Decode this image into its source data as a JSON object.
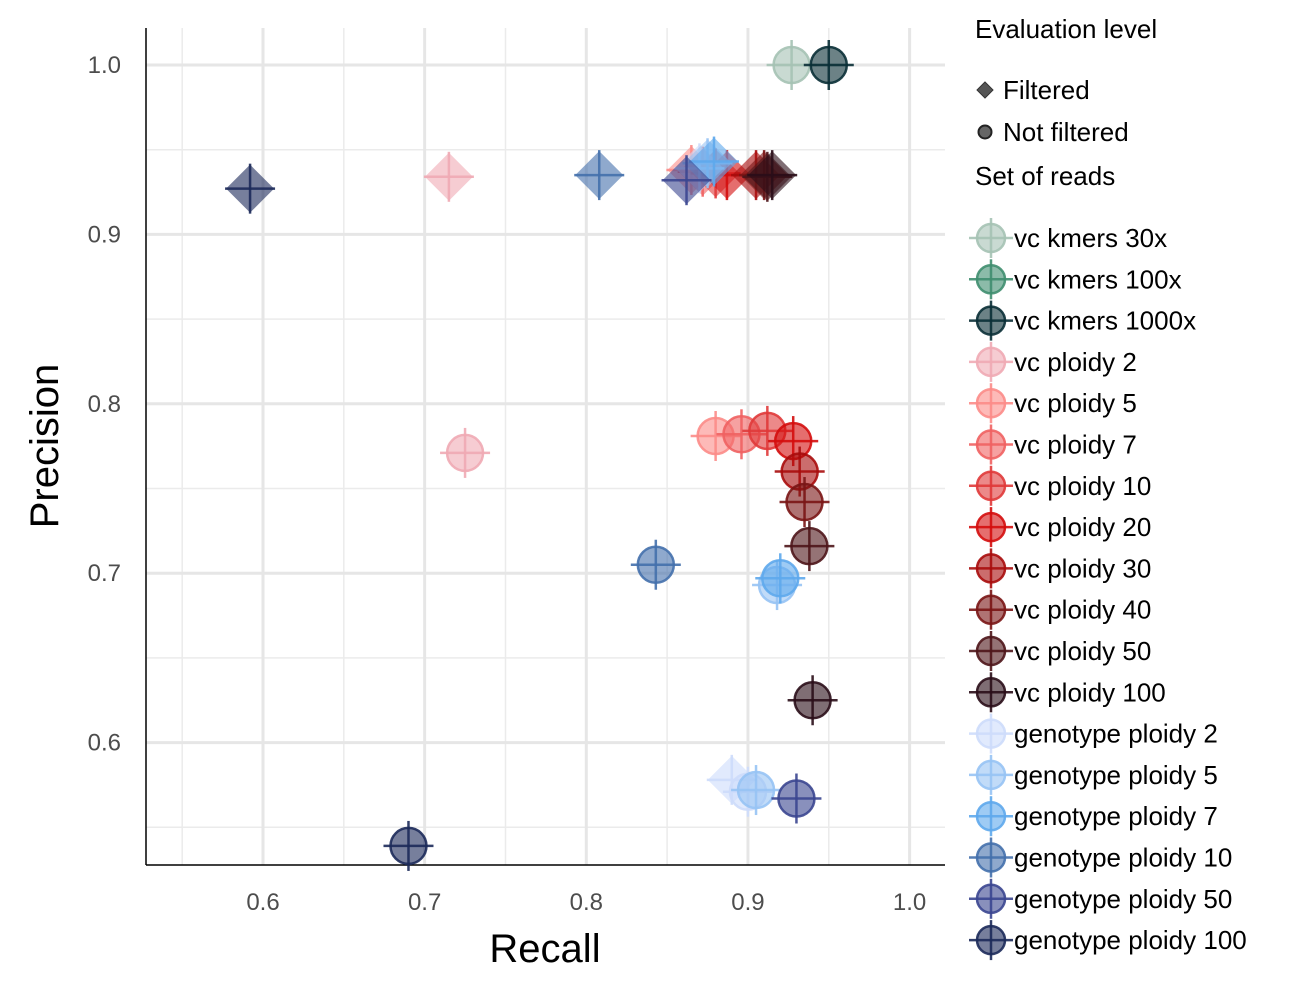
{
  "chart_data": {
    "type": "scatter",
    "xlabel": "Recall",
    "ylabel": "Precision",
    "xlim": [
      0.53,
      1.03
    ],
    "ylim": [
      0.53,
      1.022
    ],
    "x_ticks": [
      "0.6",
      "0.7",
      "0.8",
      "0.9",
      "1.0"
    ],
    "y_ticks": [
      "0.6",
      "0.7",
      "0.8",
      "0.9",
      "1.0"
    ],
    "grid": true,
    "legend_placement": "right",
    "shape_legend": {
      "title": "Evaluation level",
      "entries": [
        {
          "label": "Filtered",
          "shape": "diamond"
        },
        {
          "label": "Not filtered",
          "shape": "circle"
        }
      ]
    },
    "color_legend_title": "Set of reads",
    "series": [
      {
        "name": "vc kmers 30x",
        "color": "#a5c2b4",
        "points": [
          {
            "x": 0.927,
            "y": 1.0,
            "shape": "circle"
          }
        ]
      },
      {
        "name": "vc kmers 100x",
        "color": "#3f8e6f",
        "points": []
      },
      {
        "name": "vc kmers 1000x",
        "color": "#0a2f36",
        "points": [
          {
            "x": 0.95,
            "y": 1.0,
            "shape": "circle"
          }
        ]
      },
      {
        "name": "vc ploidy 2",
        "color": "#f0aab4",
        "points": [
          {
            "x": 0.715,
            "y": 0.934,
            "shape": "diamond"
          },
          {
            "x": 0.725,
            "y": 0.771,
            "shape": "circle"
          }
        ]
      },
      {
        "name": "vc ploidy 5",
        "color": "#fc8c88",
        "points": [
          {
            "x": 0.865,
            "y": 0.938,
            "shape": "diamond"
          },
          {
            "x": 0.88,
            "y": 0.781,
            "shape": "circle"
          }
        ]
      },
      {
        "name": "vc ploidy 7",
        "color": "#f06262",
        "points": [
          {
            "x": 0.872,
            "y": 0.937,
            "shape": "diamond"
          },
          {
            "x": 0.896,
            "y": 0.782,
            "shape": "circle"
          }
        ]
      },
      {
        "name": "vc ploidy 10",
        "color": "#e03a3a",
        "points": [
          {
            "x": 0.88,
            "y": 0.936,
            "shape": "diamond"
          },
          {
            "x": 0.912,
            "y": 0.784,
            "shape": "circle"
          }
        ]
      },
      {
        "name": "vc ploidy 20",
        "color": "#d40d0d",
        "points": [
          {
            "x": 0.887,
            "y": 0.935,
            "shape": "diamond"
          },
          {
            "x": 0.928,
            "y": 0.778,
            "shape": "circle"
          }
        ]
      },
      {
        "name": "vc ploidy 30",
        "color": "#a80c0c",
        "points": [
          {
            "x": 0.905,
            "y": 0.935,
            "shape": "diamond"
          },
          {
            "x": 0.932,
            "y": 0.76,
            "shape": "circle"
          }
        ]
      },
      {
        "name": "vc ploidy 40",
        "color": "#7a1515",
        "points": [
          {
            "x": 0.91,
            "y": 0.935,
            "shape": "diamond"
          },
          {
            "x": 0.935,
            "y": 0.742,
            "shape": "circle"
          }
        ]
      },
      {
        "name": "vc ploidy 50",
        "color": "#4e1519",
        "points": [
          {
            "x": 0.912,
            "y": 0.934,
            "shape": "diamond"
          },
          {
            "x": 0.938,
            "y": 0.716,
            "shape": "circle"
          }
        ]
      },
      {
        "name": "vc ploidy 100",
        "color": "#2a0d18",
        "points": [
          {
            "x": 0.915,
            "y": 0.935,
            "shape": "diamond"
          },
          {
            "x": 0.94,
            "y": 0.625,
            "shape": "circle"
          }
        ]
      },
      {
        "name": "genotype ploidy 2",
        "color": "#cddcfb",
        "points": [
          {
            "x": 0.87,
            "y": 0.939,
            "shape": "diamond"
          },
          {
            "x": 0.89,
            "y": 0.578,
            "shape": "diamond"
          },
          {
            "x": 0.9,
            "y": 0.571,
            "shape": "circle"
          }
        ]
      },
      {
        "name": "genotype ploidy 5",
        "color": "#97c3f4",
        "points": [
          {
            "x": 0.875,
            "y": 0.942,
            "shape": "diamond"
          },
          {
            "x": 0.905,
            "y": 0.572,
            "shape": "circle"
          },
          {
            "x": 0.918,
            "y": 0.693,
            "shape": "circle"
          }
        ]
      },
      {
        "name": "genotype ploidy 7",
        "color": "#5ea8ec",
        "points": [
          {
            "x": 0.879,
            "y": 0.943,
            "shape": "diamond"
          },
          {
            "x": 0.92,
            "y": 0.697,
            "shape": "circle"
          }
        ]
      },
      {
        "name": "genotype ploidy 10",
        "color": "#4470ac",
        "points": [
          {
            "x": 0.808,
            "y": 0.935,
            "shape": "diamond"
          },
          {
            "x": 0.843,
            "y": 0.705,
            "shape": "circle"
          }
        ]
      },
      {
        "name": "genotype ploidy 50",
        "color": "#3b4690",
        "points": [
          {
            "x": 0.862,
            "y": 0.932,
            "shape": "diamond"
          },
          {
            "x": 0.93,
            "y": 0.567,
            "shape": "circle"
          }
        ]
      },
      {
        "name": "genotype ploidy 100",
        "color": "#1c2a5a",
        "points": [
          {
            "x": 0.592,
            "y": 0.927,
            "shape": "diamond"
          },
          {
            "x": 0.69,
            "y": 0.539,
            "shape": "circle"
          }
        ]
      }
    ]
  }
}
